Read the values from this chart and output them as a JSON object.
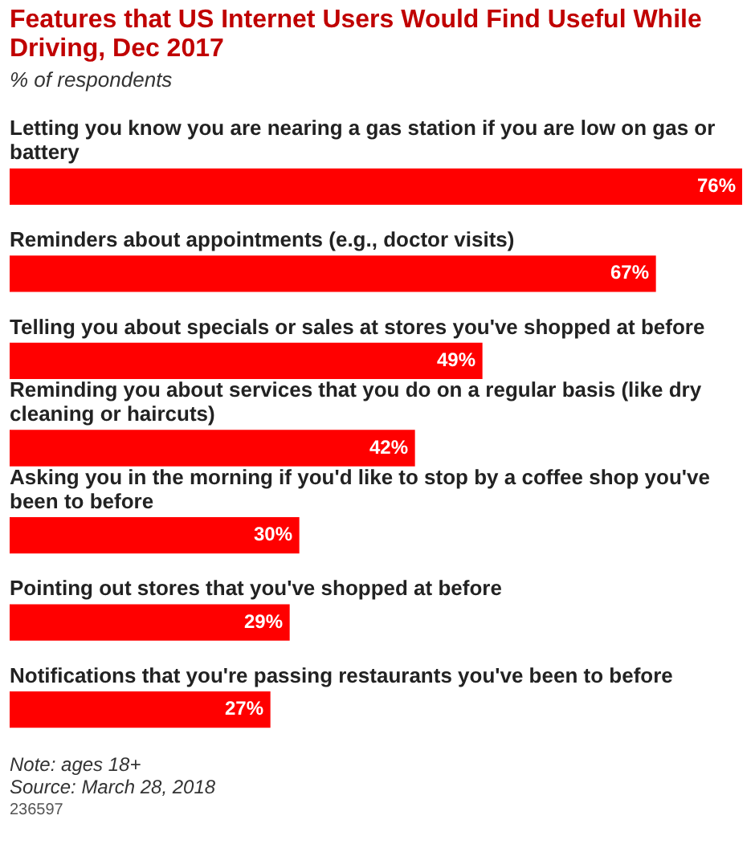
{
  "chart_data": {
    "type": "bar",
    "orientation": "horizontal",
    "title": "Features that US Internet Users Would Find Useful While Driving, Dec 2017",
    "subtitle": "% of respondents",
    "categories": [
      "Letting you know you are nearing a gas station if you are low on gas or battery",
      "Reminders about appointments (e.g., doctor visits)",
      "Telling you about specials or sales at stores you've shopped at before",
      "Reminding you about services that you do on a regular basis (like dry cleaning or haircuts)",
      "Asking you in the morning if you'd like to stop by a coffee shop you've been to before",
      "Pointing out stores that you've shopped at before",
      "Notifications that you're passing restaurants you've been to before"
    ],
    "values": [
      76,
      67,
      49,
      42,
      30,
      29,
      27
    ],
    "value_labels": [
      "76%",
      "67%",
      "49%",
      "42%",
      "30%",
      "29%",
      "27%"
    ],
    "color": "#ff0000",
    "annotations": [
      "Note: ages 18+",
      "Source: March 28, 2018",
      "236597"
    ]
  }
}
